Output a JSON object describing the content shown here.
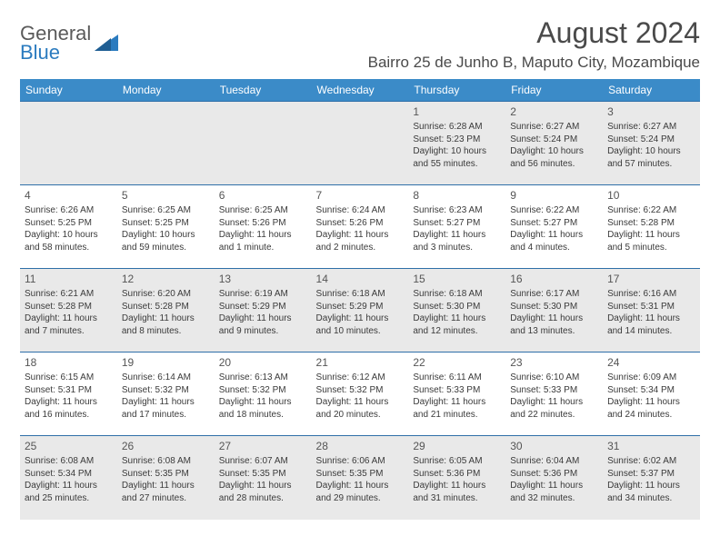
{
  "header": {
    "logo_gray": "General",
    "logo_blue": "Blue",
    "month_title": "August 2024",
    "location": "Bairro 25 de Junho B, Maputo City, Mozambique"
  },
  "columns": [
    "Sunday",
    "Monday",
    "Tuesday",
    "Wednesday",
    "Thursday",
    "Friday",
    "Saturday"
  ],
  "weeks": [
    [
      null,
      null,
      null,
      null,
      {
        "n": "1",
        "sr": "Sunrise: 6:28 AM",
        "ss": "Sunset: 5:23 PM",
        "dl": "Daylight: 10 hours and 55 minutes."
      },
      {
        "n": "2",
        "sr": "Sunrise: 6:27 AM",
        "ss": "Sunset: 5:24 PM",
        "dl": "Daylight: 10 hours and 56 minutes."
      },
      {
        "n": "3",
        "sr": "Sunrise: 6:27 AM",
        "ss": "Sunset: 5:24 PM",
        "dl": "Daylight: 10 hours and 57 minutes."
      }
    ],
    [
      {
        "n": "4",
        "sr": "Sunrise: 6:26 AM",
        "ss": "Sunset: 5:25 PM",
        "dl": "Daylight: 10 hours and 58 minutes."
      },
      {
        "n": "5",
        "sr": "Sunrise: 6:25 AM",
        "ss": "Sunset: 5:25 PM",
        "dl": "Daylight: 10 hours and 59 minutes."
      },
      {
        "n": "6",
        "sr": "Sunrise: 6:25 AM",
        "ss": "Sunset: 5:26 PM",
        "dl": "Daylight: 11 hours and 1 minute."
      },
      {
        "n": "7",
        "sr": "Sunrise: 6:24 AM",
        "ss": "Sunset: 5:26 PM",
        "dl": "Daylight: 11 hours and 2 minutes."
      },
      {
        "n": "8",
        "sr": "Sunrise: 6:23 AM",
        "ss": "Sunset: 5:27 PM",
        "dl": "Daylight: 11 hours and 3 minutes."
      },
      {
        "n": "9",
        "sr": "Sunrise: 6:22 AM",
        "ss": "Sunset: 5:27 PM",
        "dl": "Daylight: 11 hours and 4 minutes."
      },
      {
        "n": "10",
        "sr": "Sunrise: 6:22 AM",
        "ss": "Sunset: 5:28 PM",
        "dl": "Daylight: 11 hours and 5 minutes."
      }
    ],
    [
      {
        "n": "11",
        "sr": "Sunrise: 6:21 AM",
        "ss": "Sunset: 5:28 PM",
        "dl": "Daylight: 11 hours and 7 minutes."
      },
      {
        "n": "12",
        "sr": "Sunrise: 6:20 AM",
        "ss": "Sunset: 5:28 PM",
        "dl": "Daylight: 11 hours and 8 minutes."
      },
      {
        "n": "13",
        "sr": "Sunrise: 6:19 AM",
        "ss": "Sunset: 5:29 PM",
        "dl": "Daylight: 11 hours and 9 minutes."
      },
      {
        "n": "14",
        "sr": "Sunrise: 6:18 AM",
        "ss": "Sunset: 5:29 PM",
        "dl": "Daylight: 11 hours and 10 minutes."
      },
      {
        "n": "15",
        "sr": "Sunrise: 6:18 AM",
        "ss": "Sunset: 5:30 PM",
        "dl": "Daylight: 11 hours and 12 minutes."
      },
      {
        "n": "16",
        "sr": "Sunrise: 6:17 AM",
        "ss": "Sunset: 5:30 PM",
        "dl": "Daylight: 11 hours and 13 minutes."
      },
      {
        "n": "17",
        "sr": "Sunrise: 6:16 AM",
        "ss": "Sunset: 5:31 PM",
        "dl": "Daylight: 11 hours and 14 minutes."
      }
    ],
    [
      {
        "n": "18",
        "sr": "Sunrise: 6:15 AM",
        "ss": "Sunset: 5:31 PM",
        "dl": "Daylight: 11 hours and 16 minutes."
      },
      {
        "n": "19",
        "sr": "Sunrise: 6:14 AM",
        "ss": "Sunset: 5:32 PM",
        "dl": "Daylight: 11 hours and 17 minutes."
      },
      {
        "n": "20",
        "sr": "Sunrise: 6:13 AM",
        "ss": "Sunset: 5:32 PM",
        "dl": "Daylight: 11 hours and 18 minutes."
      },
      {
        "n": "21",
        "sr": "Sunrise: 6:12 AM",
        "ss": "Sunset: 5:32 PM",
        "dl": "Daylight: 11 hours and 20 minutes."
      },
      {
        "n": "22",
        "sr": "Sunrise: 6:11 AM",
        "ss": "Sunset: 5:33 PM",
        "dl": "Daylight: 11 hours and 21 minutes."
      },
      {
        "n": "23",
        "sr": "Sunrise: 6:10 AM",
        "ss": "Sunset: 5:33 PM",
        "dl": "Daylight: 11 hours and 22 minutes."
      },
      {
        "n": "24",
        "sr": "Sunrise: 6:09 AM",
        "ss": "Sunset: 5:34 PM",
        "dl": "Daylight: 11 hours and 24 minutes."
      }
    ],
    [
      {
        "n": "25",
        "sr": "Sunrise: 6:08 AM",
        "ss": "Sunset: 5:34 PM",
        "dl": "Daylight: 11 hours and 25 minutes."
      },
      {
        "n": "26",
        "sr": "Sunrise: 6:08 AM",
        "ss": "Sunset: 5:35 PM",
        "dl": "Daylight: 11 hours and 27 minutes."
      },
      {
        "n": "27",
        "sr": "Sunrise: 6:07 AM",
        "ss": "Sunset: 5:35 PM",
        "dl": "Daylight: 11 hours and 28 minutes."
      },
      {
        "n": "28",
        "sr": "Sunrise: 6:06 AM",
        "ss": "Sunset: 5:35 PM",
        "dl": "Daylight: 11 hours and 29 minutes."
      },
      {
        "n": "29",
        "sr": "Sunrise: 6:05 AM",
        "ss": "Sunset: 5:36 PM",
        "dl": "Daylight: 11 hours and 31 minutes."
      },
      {
        "n": "30",
        "sr": "Sunrise: 6:04 AM",
        "ss": "Sunset: 5:36 PM",
        "dl": "Daylight: 11 hours and 32 minutes."
      },
      {
        "n": "31",
        "sr": "Sunrise: 6:02 AM",
        "ss": "Sunset: 5:37 PM",
        "dl": "Daylight: 11 hours and 34 minutes."
      }
    ]
  ],
  "colors": {
    "header_bg": "#3b8bc8",
    "row_border": "#2f6fa8",
    "alt_row_bg": "#e9e9e9",
    "logo_accent": "#2b7bbf"
  }
}
